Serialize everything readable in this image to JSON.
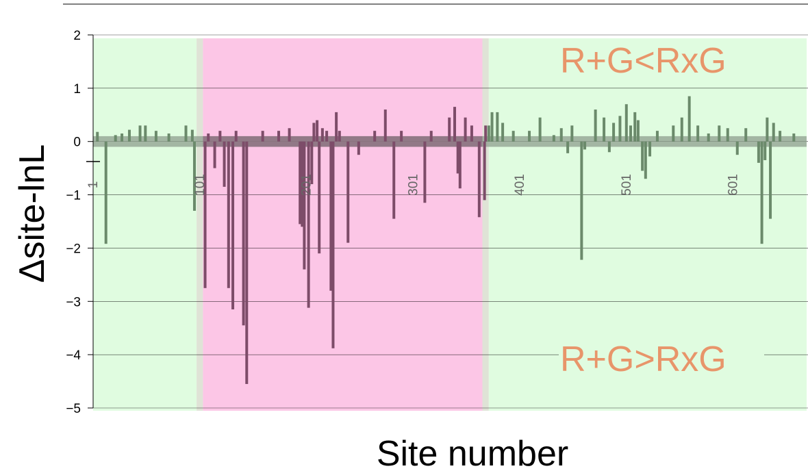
{
  "chart_data": {
    "type": "bar",
    "xlabel": "Site number",
    "ylabel": "Δsite-lnL",
    "ylim": [
      -5,
      2
    ],
    "xlim": [
      1,
      670
    ],
    "yticks": [
      "2",
      "1",
      "0",
      "−1",
      "−2",
      "−3",
      "−4",
      "−5"
    ],
    "ytick_values": [
      2,
      1,
      0,
      -1,
      -2,
      -3,
      -4,
      -5
    ],
    "xticks": [
      "1",
      "101",
      "201",
      "301",
      "401",
      "501",
      "601"
    ],
    "xtick_values": [
      1,
      101,
      201,
      301,
      401,
      501,
      601
    ],
    "grid": true,
    "regions": [
      {
        "start": 1,
        "end": 98,
        "color": "#e0fce0"
      },
      {
        "start": 98,
        "end": 104,
        "color": "#dfe3d6"
      },
      {
        "start": 104,
        "end": 366,
        "color": "#fcc6e6"
      },
      {
        "start": 366,
        "end": 372,
        "color": "#dfe3d6"
      },
      {
        "start": 372,
        "end": 670,
        "color": "#e0fce0"
      }
    ],
    "series": [
      {
        "color": "#6b8a6b",
        "points": [
          {
            "x": 13,
            "y": -1.92
          },
          {
            "x": 5,
            "y": 0.18
          },
          {
            "x": 22,
            "y": 0.12
          },
          {
            "x": 28,
            "y": 0.15
          },
          {
            "x": 35,
            "y": 0.22
          },
          {
            "x": 45,
            "y": 0.3
          },
          {
            "x": 50,
            "y": 0.3
          },
          {
            "x": 60,
            "y": 0.2
          },
          {
            "x": 72,
            "y": 0.15
          },
          {
            "x": 88,
            "y": 0.3
          },
          {
            "x": 96,
            "y": -1.3
          },
          {
            "x": 94,
            "y": 0.22
          },
          {
            "x": 372,
            "y": 0.3
          },
          {
            "x": 375,
            "y": 0.55
          },
          {
            "x": 380,
            "y": 0.55
          },
          {
            "x": 385,
            "y": 0.35
          },
          {
            "x": 395,
            "y": 0.2
          },
          {
            "x": 410,
            "y": 0.2
          },
          {
            "x": 420,
            "y": 0.45
          },
          {
            "x": 433,
            "y": 0.12
          },
          {
            "x": 440,
            "y": 0.25
          },
          {
            "x": 446,
            "y": -0.22
          },
          {
            "x": 450,
            "y": 0.3
          },
          {
            "x": 459,
            "y": -2.22
          },
          {
            "x": 462,
            "y": -0.15
          },
          {
            "x": 472,
            "y": 0.6
          },
          {
            "x": 480,
            "y": 0.45
          },
          {
            "x": 485,
            "y": -0.2
          },
          {
            "x": 489,
            "y": 0.35
          },
          {
            "x": 495,
            "y": 0.48
          },
          {
            "x": 501,
            "y": 0.7
          },
          {
            "x": 505,
            "y": 0.3
          },
          {
            "x": 509,
            "y": 0.55
          },
          {
            "x": 512,
            "y": 0.4
          },
          {
            "x": 516,
            "y": -0.55
          },
          {
            "x": 519,
            "y": -0.7
          },
          {
            "x": 523,
            "y": -0.28
          },
          {
            "x": 530,
            "y": 0.2
          },
          {
            "x": 545,
            "y": 0.3
          },
          {
            "x": 553,
            "y": 0.45
          },
          {
            "x": 560,
            "y": 0.85
          },
          {
            "x": 568,
            "y": 0.3
          },
          {
            "x": 578,
            "y": 0.15
          },
          {
            "x": 588,
            "y": 0.3
          },
          {
            "x": 596,
            "y": 0.25
          },
          {
            "x": 605,
            "y": -0.25
          },
          {
            "x": 613,
            "y": 0.25
          },
          {
            "x": 625,
            "y": -0.4
          },
          {
            "x": 628,
            "y": -1.92
          },
          {
            "x": 631,
            "y": -0.35
          },
          {
            "x": 633,
            "y": 0.45
          },
          {
            "x": 636,
            "y": -1.45
          },
          {
            "x": 639,
            "y": 0.35
          },
          {
            "x": 645,
            "y": 0.2
          },
          {
            "x": 658,
            "y": 0.15
          }
        ]
      },
      {
        "color": "#7d4c69",
        "points": [
          {
            "x": 106,
            "y": -2.75
          },
          {
            "x": 109,
            "y": 0.15
          },
          {
            "x": 115,
            "y": -0.5
          },
          {
            "x": 120,
            "y": 0.2
          },
          {
            "x": 124,
            "y": -0.85
          },
          {
            "x": 128,
            "y": -2.75
          },
          {
            "x": 132,
            "y": -3.15
          },
          {
            "x": 135,
            "y": 0.2
          },
          {
            "x": 142,
            "y": -3.45
          },
          {
            "x": 145,
            "y": -4.55
          },
          {
            "x": 160,
            "y": 0.2
          },
          {
            "x": 175,
            "y": 0.2
          },
          {
            "x": 185,
            "y": 0.25
          },
          {
            "x": 195,
            "y": -1.55
          },
          {
            "x": 197,
            "y": -1.6
          },
          {
            "x": 199,
            "y": -2.4
          },
          {
            "x": 203,
            "y": -3.12
          },
          {
            "x": 206,
            "y": -0.8
          },
          {
            "x": 208,
            "y": 0.35
          },
          {
            "x": 211,
            "y": 0.4
          },
          {
            "x": 213,
            "y": -2.1
          },
          {
            "x": 216,
            "y": 0.25
          },
          {
            "x": 220,
            "y": 0.2
          },
          {
            "x": 224,
            "y": -2.8
          },
          {
            "x": 226,
            "y": -3.88
          },
          {
            "x": 229,
            "y": 0.55
          },
          {
            "x": 232,
            "y": 0.2
          },
          {
            "x": 240,
            "y": -1.9
          },
          {
            "x": 250,
            "y": -0.25
          },
          {
            "x": 265,
            "y": 0.2
          },
          {
            "x": 275,
            "y": 0.6
          },
          {
            "x": 283,
            "y": -1.45
          },
          {
            "x": 290,
            "y": 0.2
          },
          {
            "x": 312,
            "y": -1.15
          },
          {
            "x": 318,
            "y": 0.2
          },
          {
            "x": 335,
            "y": 0.45
          },
          {
            "x": 340,
            "y": 0.65
          },
          {
            "x": 343,
            "y": -0.6
          },
          {
            "x": 345,
            "y": -0.88
          },
          {
            "x": 350,
            "y": 0.45
          },
          {
            "x": 356,
            "y": 0.3
          },
          {
            "x": 363,
            "y": -1.42
          },
          {
            "x": 368,
            "y": -1.1
          },
          {
            "x": 369,
            "y": 0.3
          }
        ]
      }
    ],
    "annotations": [
      {
        "text": "R+G<RxG",
        "color": "#e8956a",
        "position": "top-right"
      },
      {
        "text": "R+G>RxG",
        "color": "#e8956a",
        "position": "bottom-right"
      }
    ]
  }
}
